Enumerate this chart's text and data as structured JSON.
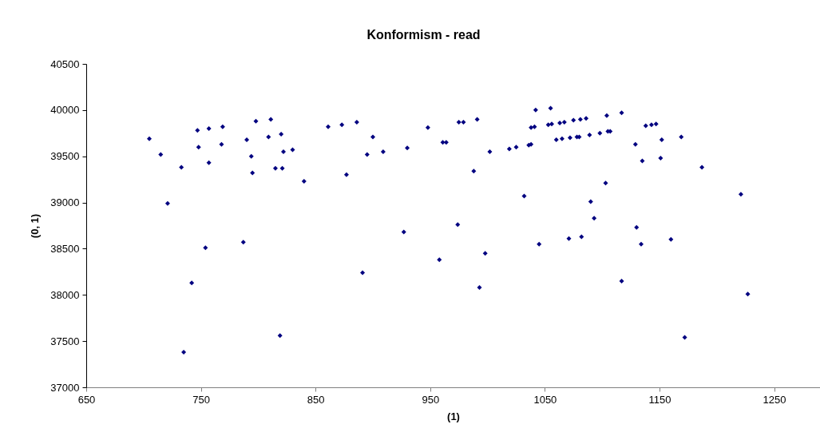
{
  "chart_data": {
    "type": "scatter",
    "title": "Konformism - read",
    "xlabel": "(1)",
    "ylabel": "(0, 1)",
    "xlim": [
      650,
      1290
    ],
    "xticks": [
      650,
      750,
      850,
      950,
      1050,
      1150,
      1250
    ],
    "ylim": [
      37000,
      40500
    ],
    "yticks": [
      37000,
      37500,
      38000,
      38500,
      39000,
      39500,
      40000,
      40500
    ],
    "marker": "diamond",
    "grid": false,
    "series": [
      {
        "color": "#000080",
        "x": [
          705,
          715,
          721,
          733,
          735,
          742,
          747,
          748,
          754,
          757,
          757,
          768,
          769,
          787,
          790,
          794,
          795,
          798,
          809,
          811,
          815,
          819,
          820,
          821,
          822,
          830,
          840,
          861,
          873,
          877,
          886,
          891,
          895,
          900,
          909,
          927,
          930,
          948,
          958,
          961,
          964,
          974,
          975,
          979,
          988,
          991,
          993,
          998,
          1002,
          1019,
          1025,
          1032,
          1036,
          1038,
          1038,
          1041,
          1042,
          1045,
          1053,
          1055,
          1056,
          1060,
          1063,
          1065,
          1067,
          1071,
          1072,
          1075,
          1078,
          1080,
          1081,
          1082,
          1086,
          1089,
          1090,
          1093,
          1098,
          1103,
          1104,
          1105,
          1107,
          1117,
          1117,
          1129,
          1130,
          1134,
          1135,
          1138,
          1143,
          1147,
          1151,
          1152,
          1160,
          1169,
          1172,
          1187,
          1221,
          1227
        ],
        "values": [
          39690,
          39520,
          38990,
          39380,
          37380,
          38130,
          39780,
          39600,
          38510,
          39800,
          39430,
          39630,
          39820,
          38570,
          39680,
          39500,
          39320,
          39880,
          39710,
          39900,
          39370,
          37560,
          39740,
          39370,
          39550,
          39570,
          39230,
          39820,
          39840,
          39300,
          39870,
          38240,
          39520,
          39710,
          39550,
          38680,
          39590,
          39810,
          38380,
          39650,
          39650,
          38760,
          39870,
          39870,
          39340,
          39900,
          38080,
          38450,
          39550,
          39580,
          39600,
          39070,
          39620,
          39630,
          39810,
          39820,
          40000,
          38550,
          39840,
          40020,
          39850,
          39680,
          39860,
          39690,
          39870,
          38610,
          39700,
          39890,
          39710,
          39710,
          39900,
          38630,
          39910,
          39730,
          39010,
          38830,
          39750,
          39210,
          39940,
          39770,
          39770,
          39970,
          38150,
          39630,
          38730,
          38550,
          39450,
          39830,
          39840,
          39850,
          39480,
          39680,
          38600,
          39710,
          37540,
          39380,
          39090,
          38010
        ]
      }
    ]
  }
}
